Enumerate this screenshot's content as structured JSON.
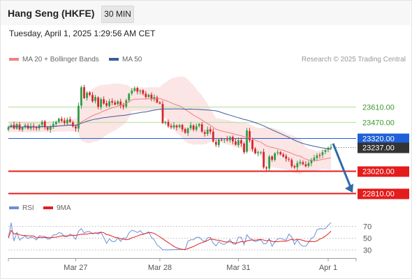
{
  "header": {
    "title": "Hang Seng (HKFE)",
    "interval": "30 MIN",
    "datetime": "Tuesday, April 1, 2025 1:29:56 AM CET"
  },
  "legend": {
    "ma20": "MA 20 + Bollinger Bands",
    "ma50": "MA 50",
    "credit": "Research © 2025 Trading Central"
  },
  "rsi_legend": {
    "rsi": "RSI",
    "ma": "9MA"
  },
  "colors": {
    "up": "#2e9e47",
    "down": "#d9262a",
    "ma20": "#f08080",
    "ma50": "#3c5c9c",
    "band": "#fadcdc",
    "support": "#e41c1c",
    "resistance": "#bfe2ae",
    "resistance_text": "#3c9a28",
    "pivot": "#1f5fd8",
    "current": "#333333",
    "arrow": "#2f6aa8",
    "rsi": "#6b8fd6",
    "rsi_ma": "#e41c1c"
  },
  "chart_data": [
    {
      "type": "candlestick",
      "title": "Hang Seng (HKFE)",
      "interval": "30 MIN",
      "x_tick_labels": [
        "Mar 27",
        "Mar 28",
        "Mar 31",
        "Apr 1"
      ],
      "ylim": [
        22760,
        23920
      ],
      "levels": [
        {
          "value": 23610.0,
          "label": "23610.00",
          "kind": "resistance"
        },
        {
          "value": 23470.0,
          "label": "23470.00",
          "kind": "resistance"
        },
        {
          "value": 23320.0,
          "label": "23320.00",
          "kind": "pivot"
        },
        {
          "value": 23237.0,
          "label": "23237.00",
          "kind": "current"
        },
        {
          "value": 23020.0,
          "label": "23020.00",
          "kind": "support"
        },
        {
          "value": 22810.0,
          "label": "22810.00",
          "kind": "support"
        }
      ],
      "forecast": {
        "from": 23270,
        "to": 22810
      },
      "close": [
        23420,
        23440,
        23410,
        23450,
        23400,
        23420,
        23440,
        23410,
        23430,
        23420,
        23410,
        23440,
        23470,
        23420,
        23400,
        23430,
        23450,
        23470,
        23500,
        23480,
        23460,
        23490,
        23470,
        23430,
        23410,
        23620,
        23790,
        23690,
        23740,
        23720,
        23660,
        23700,
        23610,
        23680,
        23640,
        23620,
        23660,
        23650,
        23630,
        23660,
        23620,
        23610,
        23670,
        23730,
        23760,
        23780,
        23750,
        23760,
        23730,
        23700,
        23720,
        23680,
        23700,
        23650,
        23640,
        23460,
        23470,
        23430,
        23420,
        23440,
        23420,
        23440,
        23400,
        23370,
        23410,
        23440,
        23400,
        23430,
        23450,
        23380,
        23360,
        23400,
        23380,
        23290,
        23260,
        23310,
        23300,
        23310,
        23300,
        23330,
        23290,
        23260,
        23300,
        23270,
        23190,
        23390,
        23300,
        23220,
        23180,
        23190,
        23190,
        23050,
        23040,
        23150,
        23120,
        23180,
        23190,
        23170,
        23150,
        23130,
        23120,
        23060,
        23050,
        23090,
        23100,
        23080,
        23060,
        23090,
        23120,
        23140,
        23160,
        23160,
        23190,
        23210,
        23230,
        23237
      ]
    },
    {
      "type": "line",
      "title": "RSI",
      "series": [
        {
          "name": "RSI"
        },
        {
          "name": "9MA"
        }
      ],
      "ylim": [
        20,
        80
      ],
      "y_tick_labels": [
        "70",
        "50",
        "30"
      ],
      "y_ticks": [
        70,
        50,
        30
      ]
    }
  ]
}
